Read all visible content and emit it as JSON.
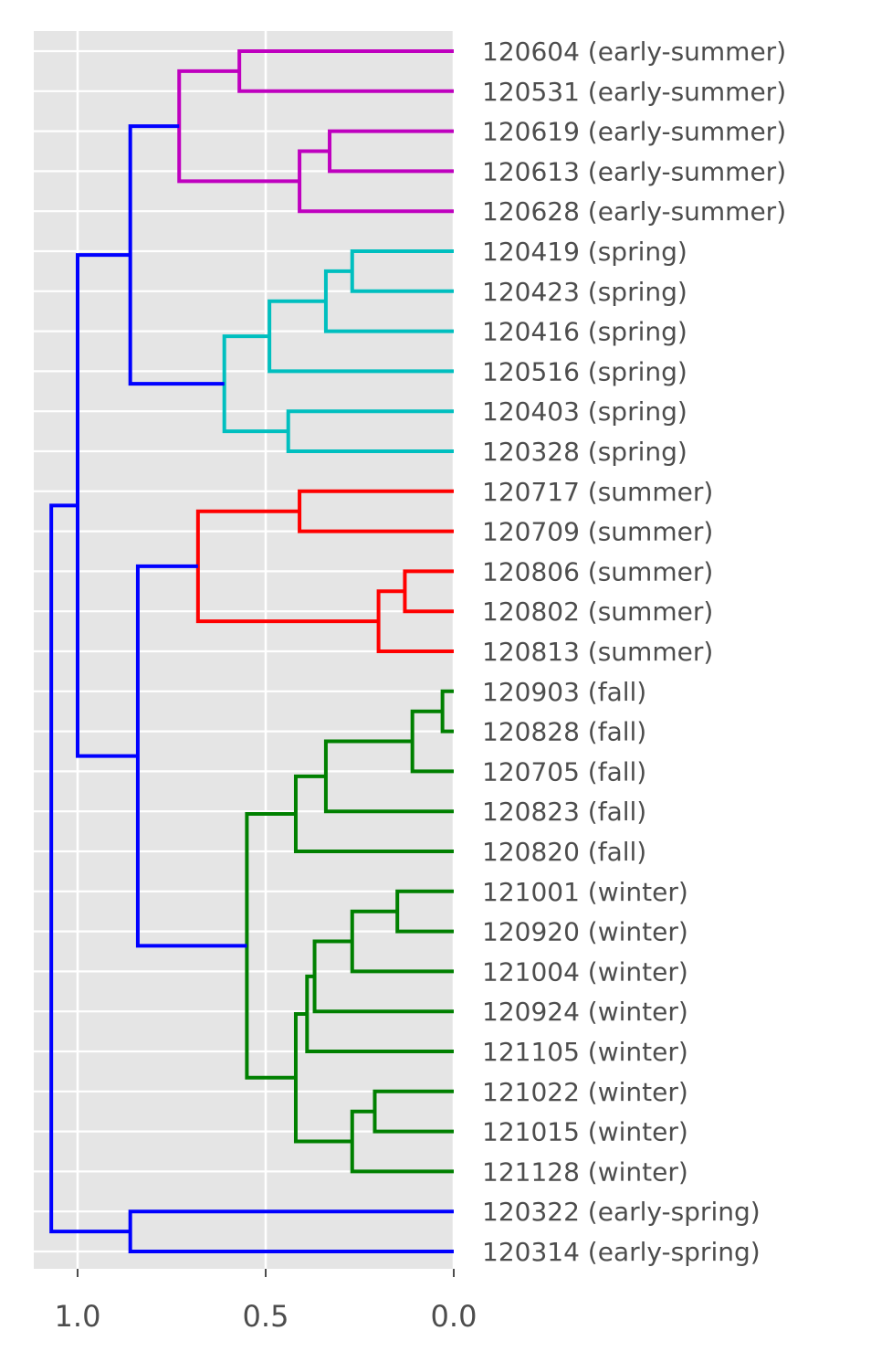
{
  "chart_data": {
    "type": "dendrogram",
    "orientation": "left",
    "xlim": [
      1.1,
      0.0
    ],
    "x_ticks": [
      {
        "value": 1.0,
        "label": "1.0"
      },
      {
        "value": 0.5,
        "label": "0.5"
      },
      {
        "value": 0.0,
        "label": "0.0"
      }
    ],
    "grid": true,
    "leaves": [
      "120604 (early-summer)",
      "120531 (early-summer)",
      "120619 (early-summer)",
      "120613 (early-summer)",
      "120628 (early-summer)",
      "120419 (spring)",
      "120423 (spring)",
      "120416 (spring)",
      "120516 (spring)",
      "120403 (spring)",
      "120328 (spring)",
      "120717 (summer)",
      "120709 (summer)",
      "120806 (summer)",
      "120802 (summer)",
      "120813 (summer)",
      "120903 (fall)",
      "120828 (fall)",
      "120705 (fall)",
      "120823 (fall)",
      "120820 (fall)",
      "121001 (winter)",
      "120920 (winter)",
      "121004 (winter)",
      "120924 (winter)",
      "121105 (winter)",
      "121022 (winter)",
      "121015 (winter)",
      "121128 (winter)",
      "120322 (early-spring)",
      "120314 (early-spring)"
    ],
    "colors": {
      "m": "#bf00bf",
      "c": "#00bfbf",
      "r": "#ff0000",
      "g": "#008000",
      "b": "#0000ff"
    },
    "merges": [
      {
        "id": "e1",
        "children": [
          0,
          1
        ],
        "height": 0.57,
        "color": "m"
      },
      {
        "id": "e2",
        "children": [
          2,
          3
        ],
        "height": 0.33,
        "color": "m"
      },
      {
        "id": "e3",
        "children": [
          "e2",
          4
        ],
        "height": 0.41,
        "color": "m"
      },
      {
        "id": "E",
        "children": [
          "e1",
          "e3"
        ],
        "height": 0.73,
        "color": "m"
      },
      {
        "id": "s1",
        "children": [
          5,
          6
        ],
        "height": 0.27,
        "color": "c"
      },
      {
        "id": "s2",
        "children": [
          "s1",
          7
        ],
        "height": 0.34,
        "color": "c"
      },
      {
        "id": "s3",
        "children": [
          "s2",
          8
        ],
        "height": 0.49,
        "color": "c"
      },
      {
        "id": "s4",
        "children": [
          9,
          10
        ],
        "height": 0.44,
        "color": "c"
      },
      {
        "id": "S",
        "children": [
          "s3",
          "s4"
        ],
        "height": 0.61,
        "color": "c"
      },
      {
        "id": "ES",
        "children": [
          "E",
          "S"
        ],
        "height": 0.86,
        "color": "b"
      },
      {
        "id": "u1",
        "children": [
          11,
          12
        ],
        "height": 0.41,
        "color": "r"
      },
      {
        "id": "u2",
        "children": [
          13,
          14
        ],
        "height": 0.13,
        "color": "r"
      },
      {
        "id": "u3",
        "children": [
          "u2",
          15
        ],
        "height": 0.2,
        "color": "r"
      },
      {
        "id": "U",
        "children": [
          "u1",
          "u3"
        ],
        "height": 0.68,
        "color": "r"
      },
      {
        "id": "f1",
        "children": [
          16,
          17
        ],
        "height": 0.03,
        "color": "g"
      },
      {
        "id": "f2",
        "children": [
          "f1",
          18
        ],
        "height": 0.11,
        "color": "g"
      },
      {
        "id": "f3",
        "children": [
          "f2",
          19
        ],
        "height": 0.34,
        "color": "g"
      },
      {
        "id": "F",
        "children": [
          "f3",
          20
        ],
        "height": 0.42,
        "color": "g"
      },
      {
        "id": "w1",
        "children": [
          21,
          22
        ],
        "height": 0.15,
        "color": "g"
      },
      {
        "id": "w2",
        "children": [
          "w1",
          23
        ],
        "height": 0.27,
        "color": "g"
      },
      {
        "id": "w3",
        "children": [
          "w2",
          24
        ],
        "height": 0.37,
        "color": "g"
      },
      {
        "id": "w4",
        "children": [
          "w3",
          25
        ],
        "height": 0.39,
        "color": "g"
      },
      {
        "id": "w5",
        "children": [
          26,
          27
        ],
        "height": 0.21,
        "color": "g"
      },
      {
        "id": "w6",
        "children": [
          "w5",
          28
        ],
        "height": 0.27,
        "color": "g"
      },
      {
        "id": "W",
        "children": [
          "w4",
          "w6"
        ],
        "height": 0.42,
        "color": "g"
      },
      {
        "id": "FW",
        "children": [
          "F",
          "W"
        ],
        "height": 0.55,
        "color": "g"
      },
      {
        "id": "UFW",
        "children": [
          "U",
          "FW"
        ],
        "height": 0.84,
        "color": "b"
      },
      {
        "id": "ESUFW",
        "children": [
          "ES",
          "UFW"
        ],
        "height": 1.0,
        "color": "b"
      },
      {
        "id": "P",
        "children": [
          29,
          30
        ],
        "height": 0.86,
        "color": "b"
      },
      {
        "id": "ROOT",
        "children": [
          "ESUFW",
          "P"
        ],
        "height": 1.07,
        "color": "b"
      }
    ]
  }
}
